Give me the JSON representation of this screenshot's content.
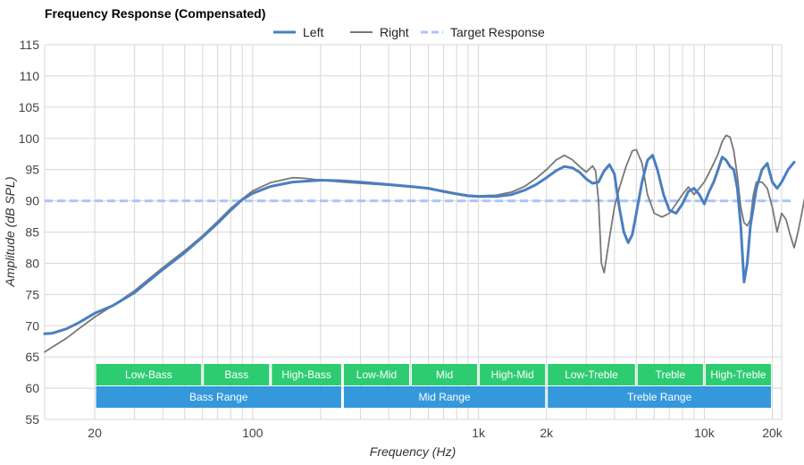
{
  "chart_data": {
    "type": "line",
    "title": "Frequency Response (Compensated)",
    "xlabel": "Frequency (Hz)",
    "ylabel": "Amplitude (dB SPL)",
    "x_scale": "log",
    "xlim": [
      12,
      22000
    ],
    "ylim": [
      55,
      115
    ],
    "grid": true,
    "legend_position": "top-center",
    "x_ticks": [
      {
        "value": 20,
        "label": "20"
      },
      {
        "value": 100,
        "label": "100"
      },
      {
        "value": 1000,
        "label": "1k"
      },
      {
        "value": 2000,
        "label": "2k"
      },
      {
        "value": 10000,
        "label": "10k"
      },
      {
        "value": 20000,
        "label": "20k"
      }
    ],
    "y_ticks": [
      55,
      60,
      65,
      70,
      75,
      80,
      85,
      90,
      95,
      100,
      105,
      110,
      115
    ],
    "series": [
      {
        "name": "Left",
        "color": "#4a7fc1",
        "style": "solid",
        "points": [
          [
            12,
            68.7
          ],
          [
            13,
            68.8
          ],
          [
            15,
            69.5
          ],
          [
            17,
            70.5
          ],
          [
            20,
            72
          ],
          [
            24,
            73.2
          ],
          [
            30,
            75.3
          ],
          [
            40,
            79
          ],
          [
            50,
            81.7
          ],
          [
            60,
            84.2
          ],
          [
            70,
            86.4
          ],
          [
            80,
            88.5
          ],
          [
            90,
            90.2
          ],
          [
            100,
            91.2
          ],
          [
            120,
            92.3
          ],
          [
            150,
            93
          ],
          [
            200,
            93.3
          ],
          [
            250,
            93.2
          ],
          [
            300,
            93
          ],
          [
            400,
            92.6
          ],
          [
            500,
            92.3
          ],
          [
            600,
            92
          ],
          [
            700,
            91.5
          ],
          [
            800,
            91.1
          ],
          [
            900,
            90.8
          ],
          [
            1000,
            90.7
          ],
          [
            1200,
            90.7
          ],
          [
            1400,
            91
          ],
          [
            1600,
            91.7
          ],
          [
            1800,
            92.6
          ],
          [
            2000,
            93.7
          ],
          [
            2200,
            94.8
          ],
          [
            2400,
            95.5
          ],
          [
            2600,
            95.3
          ],
          [
            2800,
            94.6
          ],
          [
            3000,
            93.5
          ],
          [
            3200,
            92.8
          ],
          [
            3400,
            93
          ],
          [
            3600,
            94.8
          ],
          [
            3800,
            95.8
          ],
          [
            4000,
            94.3
          ],
          [
            4200,
            89
          ],
          [
            4400,
            85
          ],
          [
            4600,
            83.3
          ],
          [
            4800,
            84.6
          ],
          [
            5000,
            88
          ],
          [
            5300,
            93
          ],
          [
            5600,
            96.5
          ],
          [
            5900,
            97.3
          ],
          [
            6200,
            95
          ],
          [
            6600,
            91
          ],
          [
            7000,
            88.5
          ],
          [
            7500,
            88
          ],
          [
            8000,
            89.5
          ],
          [
            8500,
            91.5
          ],
          [
            9000,
            92
          ],
          [
            9500,
            91
          ],
          [
            10000,
            89.5
          ],
          [
            10500,
            91.5
          ],
          [
            11000,
            93
          ],
          [
            11500,
            95
          ],
          [
            12000,
            97
          ],
          [
            12500,
            96.5
          ],
          [
            13000,
            95.5
          ],
          [
            13500,
            95
          ],
          [
            14000,
            92
          ],
          [
            14500,
            86
          ],
          [
            15000,
            77
          ],
          [
            15500,
            80
          ],
          [
            16000,
            86
          ],
          [
            17000,
            92
          ],
          [
            18000,
            95
          ],
          [
            19000,
            96
          ],
          [
            20000,
            93
          ],
          [
            21000,
            92
          ],
          [
            22000,
            93
          ],
          [
            23500,
            95
          ],
          [
            25000,
            96.2
          ]
        ]
      },
      {
        "name": "Right",
        "color": "#777777",
        "style": "solid",
        "points": [
          [
            12,
            65.8
          ],
          [
            13,
            66.6
          ],
          [
            15,
            68
          ],
          [
            17,
            69.5
          ],
          [
            20,
            71.4
          ],
          [
            24,
            73.2
          ],
          [
            30,
            75.6
          ],
          [
            40,
            79.3
          ],
          [
            50,
            82
          ],
          [
            60,
            84.4
          ],
          [
            70,
            86.7
          ],
          [
            80,
            88.8
          ],
          [
            90,
            90.3
          ],
          [
            100,
            91.6
          ],
          [
            120,
            92.9
          ],
          [
            150,
            93.7
          ],
          [
            170,
            93.6
          ],
          [
            200,
            93.3
          ],
          [
            250,
            93
          ],
          [
            300,
            92.8
          ],
          [
            400,
            92.5
          ],
          [
            500,
            92.2
          ],
          [
            600,
            92
          ],
          [
            700,
            91.6
          ],
          [
            800,
            91.2
          ],
          [
            900,
            90.9
          ],
          [
            1000,
            90.8
          ],
          [
            1200,
            90.9
          ],
          [
            1400,
            91.4
          ],
          [
            1600,
            92.3
          ],
          [
            1800,
            93.6
          ],
          [
            2000,
            95
          ],
          [
            2200,
            96.5
          ],
          [
            2400,
            97.3
          ],
          [
            2600,
            96.6
          ],
          [
            2800,
            95.5
          ],
          [
            3000,
            94.6
          ],
          [
            3200,
            95.6
          ],
          [
            3300,
            94.8
          ],
          [
            3400,
            90
          ],
          [
            3500,
            80
          ],
          [
            3600,
            78.5
          ],
          [
            3800,
            84
          ],
          [
            4000,
            89
          ],
          [
            4200,
            92
          ],
          [
            4500,
            95.5
          ],
          [
            4800,
            98
          ],
          [
            5000,
            98.2
          ],
          [
            5300,
            96
          ],
          [
            5600,
            91
          ],
          [
            6000,
            88
          ],
          [
            6500,
            87.4
          ],
          [
            7000,
            88
          ],
          [
            7500,
            89.5
          ],
          [
            8000,
            91
          ],
          [
            8500,
            92.2
          ],
          [
            9000,
            91
          ],
          [
            9500,
            92
          ],
          [
            10000,
            93
          ],
          [
            10500,
            94.5
          ],
          [
            11000,
            96
          ],
          [
            11500,
            97.5
          ],
          [
            12000,
            99.5
          ],
          [
            12500,
            100.5
          ],
          [
            13000,
            100.2
          ],
          [
            13500,
            98
          ],
          [
            14000,
            94
          ],
          [
            14500,
            89
          ],
          [
            15000,
            86.5
          ],
          [
            15500,
            86
          ],
          [
            16000,
            87
          ],
          [
            16500,
            91
          ],
          [
            17000,
            93
          ],
          [
            18000,
            93
          ],
          [
            19000,
            92
          ],
          [
            20000,
            89
          ],
          [
            21000,
            85
          ],
          [
            22000,
            88
          ],
          [
            23000,
            87
          ],
          [
            24000,
            84.5
          ],
          [
            25000,
            82.5
          ],
          [
            26000,
            85
          ],
          [
            27000,
            88
          ],
          [
            28000,
            91
          ],
          [
            29000,
            91.7
          ]
        ]
      },
      {
        "name": "Target Response",
        "color": "#a9c4ff",
        "style": "dashed",
        "points": [
          [
            12,
            90
          ],
          [
            25000,
            90
          ]
        ]
      }
    ],
    "bands": [
      {
        "label": "Low-Bass",
        "from": 20,
        "to": 60,
        "row": 1,
        "color": "#2ecc71"
      },
      {
        "label": "Bass",
        "from": 60,
        "to": 120,
        "row": 1,
        "color": "#2ecc71"
      },
      {
        "label": "High-Bass",
        "from": 120,
        "to": 250,
        "row": 1,
        "color": "#2ecc71"
      },
      {
        "label": "Low-Mid",
        "from": 250,
        "to": 500,
        "row": 1,
        "color": "#2ecc71"
      },
      {
        "label": "Mid",
        "from": 500,
        "to": 1000,
        "row": 1,
        "color": "#2ecc71"
      },
      {
        "label": "High-Mid",
        "from": 1000,
        "to": 2000,
        "row": 1,
        "color": "#2ecc71"
      },
      {
        "label": "Low-Treble",
        "from": 2000,
        "to": 5000,
        "row": 1,
        "color": "#2ecc71"
      },
      {
        "label": "Treble",
        "from": 5000,
        "to": 10000,
        "row": 1,
        "color": "#2ecc71"
      },
      {
        "label": "High-Treble",
        "from": 10000,
        "to": 20000,
        "row": 1,
        "color": "#2ecc71"
      },
      {
        "label": "Bass Range",
        "from": 20,
        "to": 250,
        "row": 2,
        "color": "#3498db"
      },
      {
        "label": "Mid Range",
        "from": 250,
        "to": 2000,
        "row": 2,
        "color": "#3498db"
      },
      {
        "label": "Treble Range",
        "from": 2000,
        "to": 20000,
        "row": 2,
        "color": "#3498db"
      }
    ]
  }
}
